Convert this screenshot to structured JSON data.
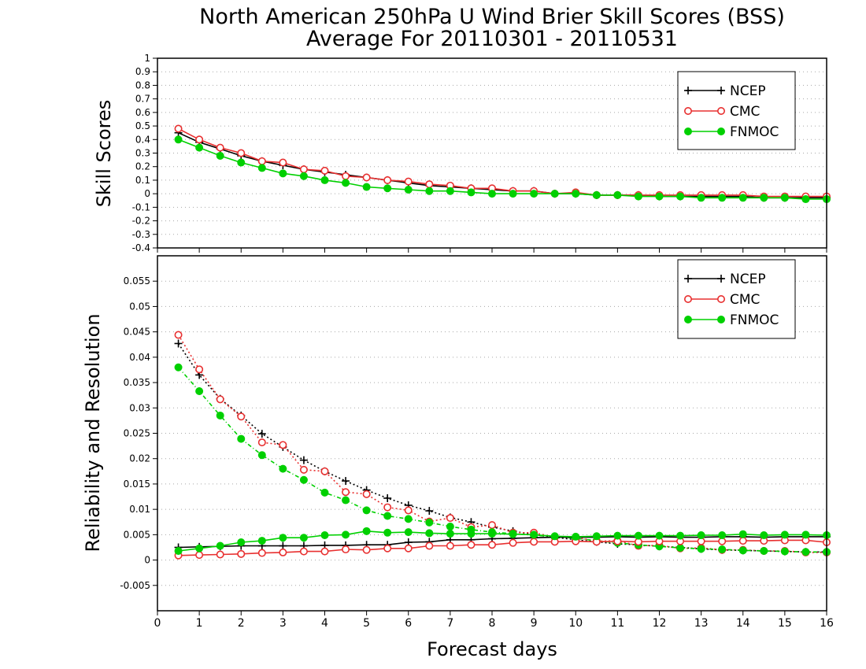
{
  "chart_data": [
    {
      "type": "line",
      "title": "North American 250hPa U Wind Brier Skill Scores (BSS)",
      "subtitle": "Average For 20110301 - 20110531",
      "ylabel": "Skill Scores",
      "xlabel": "",
      "xlim": [
        0,
        16
      ],
      "ylim": [
        -0.4,
        1
      ],
      "x_ticks": [
        "0",
        "1",
        "2",
        "3",
        "4",
        "5",
        "6",
        "7",
        "8",
        "9",
        "10",
        "11",
        "12",
        "13",
        "14",
        "15",
        "16"
      ],
      "y_ticks": [
        "-0.4",
        "-0.3",
        "-0.2",
        "-0.1",
        "0",
        "0.1",
        "0.2",
        "0.3",
        "0.4",
        "0.5",
        "0.6",
        "0.7",
        "0.8",
        "0.9",
        "1"
      ],
      "grid": true,
      "legend_position": "top-right",
      "x": [
        0.5,
        1,
        1.5,
        2,
        2.5,
        3,
        3.5,
        4,
        4.5,
        5,
        5.5,
        6,
        6.5,
        7,
        7.5,
        8,
        8.5,
        9,
        9.5,
        10,
        10.5,
        11,
        11.5,
        12,
        12.5,
        13,
        13.5,
        14,
        14.5,
        15,
        15.5,
        16
      ],
      "series": [
        {
          "name": "NCEP",
          "color": "#000000",
          "marker": "plus",
          "values": [
            0.45,
            0.38,
            0.33,
            0.28,
            0.24,
            0.21,
            0.18,
            0.16,
            0.14,
            0.12,
            0.1,
            0.08,
            0.06,
            0.05,
            0.04,
            0.03,
            0.02,
            0.02,
            0.0,
            0.0,
            -0.01,
            -0.01,
            -0.01,
            -0.02,
            -0.02,
            -0.02,
            -0.02,
            -0.02,
            -0.03,
            -0.03,
            -0.03,
            -0.03
          ]
        },
        {
          "name": "CMC",
          "color": "#e83030",
          "marker": "open-circle",
          "values": [
            0.48,
            0.4,
            0.34,
            0.3,
            0.24,
            0.23,
            0.18,
            0.17,
            0.13,
            0.12,
            0.1,
            0.09,
            0.07,
            0.06,
            0.04,
            0.04,
            0.02,
            0.02,
            0.0,
            0.01,
            -0.01,
            -0.01,
            -0.01,
            -0.01,
            -0.01,
            -0.01,
            -0.01,
            -0.01,
            -0.02,
            -0.02,
            -0.02,
            -0.02
          ]
        },
        {
          "name": "FNMOC",
          "color": "#00d000",
          "marker": "filled-circle",
          "values": [
            0.4,
            0.34,
            0.28,
            0.23,
            0.19,
            0.15,
            0.13,
            0.1,
            0.08,
            0.05,
            0.04,
            0.03,
            0.02,
            0.02,
            0.01,
            0.0,
            0.0,
            0.0,
            0.0,
            0.0,
            -0.01,
            -0.01,
            -0.02,
            -0.02,
            -0.02,
            -0.03,
            -0.03,
            -0.03,
            -0.03,
            -0.03,
            -0.04,
            -0.04
          ]
        }
      ]
    },
    {
      "type": "line",
      "title": "",
      "ylabel": "Reliability and Resolution",
      "xlabel": "Forecast days",
      "xlim": [
        0,
        16
      ],
      "ylim": [
        -0.01,
        0.06
      ],
      "x_ticks": [
        "0",
        "1",
        "2",
        "3",
        "4",
        "5",
        "6",
        "7",
        "8",
        "9",
        "10",
        "11",
        "12",
        "13",
        "14",
        "15",
        "16"
      ],
      "y_ticks": [
        "-0.005",
        "0",
        "0.005",
        "0.01",
        "0.015",
        "0.02",
        "0.025",
        "0.03",
        "0.035",
        "0.04",
        "0.045",
        "0.05",
        "0.055"
      ],
      "grid": true,
      "legend_position": "top-right",
      "x": [
        0.5,
        1,
        1.5,
        2,
        2.5,
        3,
        3.5,
        4,
        4.5,
        5,
        5.5,
        6,
        6.5,
        7,
        7.5,
        8,
        8.5,
        9,
        9.5,
        10,
        10.5,
        11,
        11.5,
        12,
        12.5,
        13,
        13.5,
        14,
        14.5,
        15,
        15.5,
        16
      ],
      "series": [
        {
          "name": "NCEP",
          "style": "dotted",
          "color": "#000000",
          "marker": "plus",
          "values": [
            0.0427,
            0.0365,
            0.0318,
            0.0285,
            0.0249,
            0.0223,
            0.0197,
            0.0175,
            0.0156,
            0.0138,
            0.0122,
            0.0108,
            0.0097,
            0.0084,
            0.0075,
            0.0065,
            0.0057,
            0.005,
            0.0045,
            0.004,
            0.0036,
            0.0032,
            0.003,
            0.0027,
            0.0025,
            0.0022,
            0.002,
            0.0019,
            0.0018,
            0.0017,
            0.0016,
            0.0016
          ]
        },
        {
          "name": "CMC",
          "style": "dotted",
          "color": "#e83030",
          "marker": "open-circle",
          "values": [
            0.0444,
            0.0376,
            0.0317,
            0.0283,
            0.0232,
            0.0227,
            0.0178,
            0.0175,
            0.0134,
            0.013,
            0.0104,
            0.0098,
            0.0076,
            0.0083,
            0.0065,
            0.0069,
            0.0054,
            0.0054,
            0.0045,
            0.0045,
            0.0037,
            0.0038,
            0.0028,
            0.0029,
            0.0023,
            0.0024,
            0.002,
            0.002,
            0.0018,
            0.0018,
            0.0015,
            0.0015
          ]
        },
        {
          "name": "FNMOC",
          "style": "dotted",
          "color": "#00d000",
          "marker": "filled-circle",
          "values": [
            0.038,
            0.0333,
            0.0285,
            0.0239,
            0.0207,
            0.018,
            0.0158,
            0.0133,
            0.0118,
            0.0098,
            0.0087,
            0.0081,
            0.0074,
            0.0066,
            0.006,
            0.0055,
            0.0052,
            0.0049,
            0.0046,
            0.0043,
            0.0038,
            0.0034,
            0.003,
            0.0027,
            0.0024,
            0.0022,
            0.0021,
            0.0019,
            0.0018,
            0.0017,
            0.0016,
            0.0016
          ]
        },
        {
          "name": "NCEP",
          "style": "solid",
          "color": "#000000",
          "marker": "plus",
          "values": [
            0.0025,
            0.0026,
            0.0027,
            0.0028,
            0.0028,
            0.0028,
            0.0028,
            0.0029,
            0.0029,
            0.003,
            0.003,
            0.0035,
            0.0036,
            0.004,
            0.004,
            0.0042,
            0.0043,
            0.0044,
            0.0045,
            0.0045,
            0.0045,
            0.0046,
            0.0045,
            0.0046,
            0.0045,
            0.0045,
            0.0046,
            0.0046,
            0.0045,
            0.0046,
            0.0046,
            0.0046
          ]
        },
        {
          "name": "CMC",
          "style": "solid",
          "color": "#e83030",
          "marker": "open-circle",
          "values": [
            0.0009,
            0.001,
            0.0011,
            0.0012,
            0.0014,
            0.0015,
            0.0017,
            0.0017,
            0.0021,
            0.002,
            0.0023,
            0.0023,
            0.0028,
            0.0028,
            0.003,
            0.003,
            0.0034,
            0.0036,
            0.0036,
            0.0037,
            0.0036,
            0.0037,
            0.0036,
            0.0037,
            0.0037,
            0.0037,
            0.0037,
            0.0038,
            0.0038,
            0.0039,
            0.0039,
            0.0035
          ]
        },
        {
          "name": "FNMOC",
          "style": "solid",
          "color": "#00d000",
          "marker": "filled-circle",
          "values": [
            0.0018,
            0.0023,
            0.0028,
            0.0035,
            0.0038,
            0.0044,
            0.0044,
            0.0049,
            0.005,
            0.0057,
            0.0054,
            0.0055,
            0.0053,
            0.0052,
            0.0052,
            0.0052,
            0.0051,
            0.005,
            0.0047,
            0.0046,
            0.0047,
            0.0048,
            0.0048,
            0.0048,
            0.0048,
            0.0049,
            0.0049,
            0.0051,
            0.0049,
            0.005,
            0.005,
            0.0049
          ]
        }
      ]
    }
  ]
}
